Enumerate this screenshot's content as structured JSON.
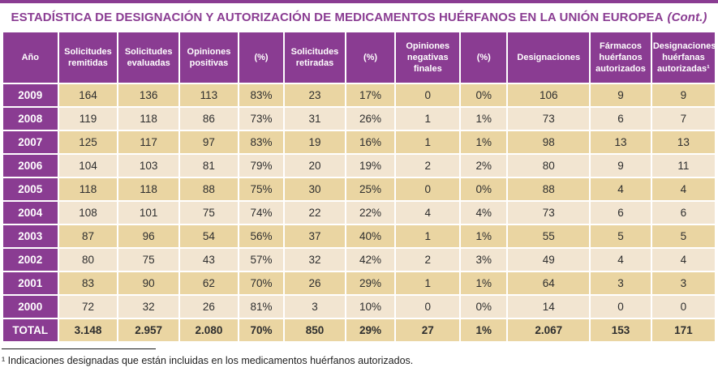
{
  "title": {
    "main": "ESTADÍSTICA DE DESIGNACIÓN Y AUTORIZACIÓN DE MEDICAMENTOS HUÉRFANOS EN LA UNIÓN EUROPEA",
    "cont": "(Cont.)"
  },
  "table": {
    "columns": [
      "Año",
      "Solicitudes remitidas",
      "Solicitudes evaluadas",
      "Opiniones positivas",
      "(%)",
      "Solicitudes retiradas",
      "(%)",
      "Opiniones negativas finales",
      "(%)",
      "Designaciones",
      "Fármacos huérfanos autorizados",
      "Designaciones huérfanas autorizadas¹"
    ],
    "rows": [
      {
        "year": "2009",
        "values": [
          "164",
          "136",
          "113",
          "83%",
          "23",
          "17%",
          "0",
          "0%",
          "106",
          "9",
          "9"
        ]
      },
      {
        "year": "2008",
        "values": [
          "119",
          "118",
          "86",
          "73%",
          "31",
          "26%",
          "1",
          "1%",
          "73",
          "6",
          "7"
        ]
      },
      {
        "year": "2007",
        "values": [
          "125",
          "117",
          "97",
          "83%",
          "19",
          "16%",
          "1",
          "1%",
          "98",
          "13",
          "13"
        ]
      },
      {
        "year": "2006",
        "values": [
          "104",
          "103",
          "81",
          "79%",
          "20",
          "19%",
          "2",
          "2%",
          "80",
          "9",
          "11"
        ]
      },
      {
        "year": "2005",
        "values": [
          "118",
          "118",
          "88",
          "75%",
          "30",
          "25%",
          "0",
          "0%",
          "88",
          "4",
          "4"
        ]
      },
      {
        "year": "2004",
        "values": [
          "108",
          "101",
          "75",
          "74%",
          "22",
          "22%",
          "4",
          "4%",
          "73",
          "6",
          "6"
        ]
      },
      {
        "year": "2003",
        "values": [
          "87",
          "96",
          "54",
          "56%",
          "37",
          "40%",
          "1",
          "1%",
          "55",
          "5",
          "5"
        ]
      },
      {
        "year": "2002",
        "values": [
          "80",
          "75",
          "43",
          "57%",
          "32",
          "42%",
          "2",
          "3%",
          "49",
          "4",
          "4"
        ]
      },
      {
        "year": "2001",
        "values": [
          "83",
          "90",
          "62",
          "70%",
          "26",
          "29%",
          "1",
          "1%",
          "64",
          "3",
          "3"
        ]
      },
      {
        "year": "2000",
        "values": [
          "72",
          "32",
          "26",
          "81%",
          "3",
          "10%",
          "0",
          "0%",
          "14",
          "0",
          "0"
        ]
      }
    ],
    "total": {
      "label": "TOTAL",
      "values": [
        "3.148",
        "2.957",
        "2.080",
        "70%",
        "850",
        "29%",
        "27",
        "1%",
        "2.067",
        "153",
        "171"
      ]
    }
  },
  "footnote": "¹ Indicaciones designadas que están incluidas en los medicamentos huérfanos autorizados.",
  "colors": {
    "purple": "#8A3C92",
    "row_dark": "#EAD5A2",
    "row_light": "#F2E5D1",
    "text": "#2e2e2e"
  }
}
